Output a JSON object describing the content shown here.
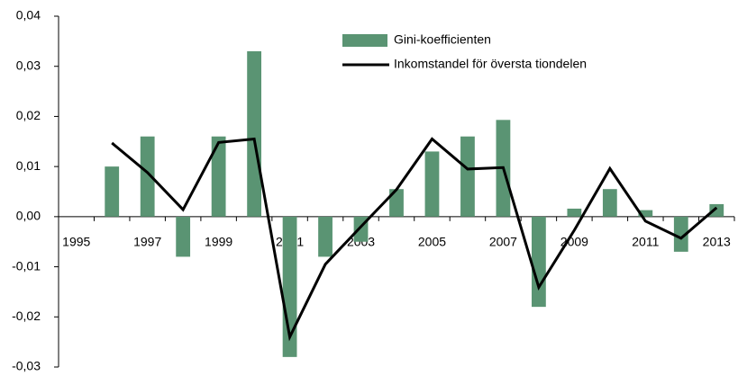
{
  "chart_data": {
    "type": "bar_line",
    "categories": [
      "1995",
      null,
      "1997",
      null,
      "1999",
      null,
      "2001",
      null,
      "2003",
      null,
      "2005",
      null,
      "2007",
      null,
      "2009",
      null,
      "2011",
      null,
      "2013"
    ],
    "series": [
      {
        "name": "Gini-koefficienten",
        "type": "bar",
        "color": "#5a9473",
        "values": [
          null,
          0.01,
          0.016,
          -0.008,
          0.016,
          0.033,
          -0.028,
          -0.008,
          -0.005,
          0.0055,
          0.013,
          0.016,
          0.0193,
          -0.018,
          0.0016,
          0.0055,
          0.0013,
          -0.007,
          0.0025
        ]
      },
      {
        "name": "Inkomstandel för översta tiondelen",
        "type": "line",
        "color": "#000000",
        "values": [
          null,
          0.0147,
          0.0088,
          0.0014,
          0.0148,
          0.0155,
          -0.024,
          -0.0095,
          -0.002,
          0.0054,
          0.0155,
          0.0095,
          0.0098,
          -0.0141,
          -0.0027,
          0.0096,
          -0.0009,
          -0.0043,
          0.0018
        ]
      }
    ],
    "ylim": [
      -0.03,
      0.04
    ],
    "yticks": [
      {
        "value": -0.03,
        "label": "-0,03"
      },
      {
        "value": -0.02,
        "label": "-0,02"
      },
      {
        "value": -0.01,
        "label": "-0,01"
      },
      {
        "value": 0,
        "label": "0,00"
      },
      {
        "value": 0.01,
        "label": "0,01"
      },
      {
        "value": 0.02,
        "label": "0,02"
      },
      {
        "value": 0.03,
        "label": "0,03"
      },
      {
        "value": 0.04,
        "label": "0,04"
      }
    ],
    "grid": false
  }
}
